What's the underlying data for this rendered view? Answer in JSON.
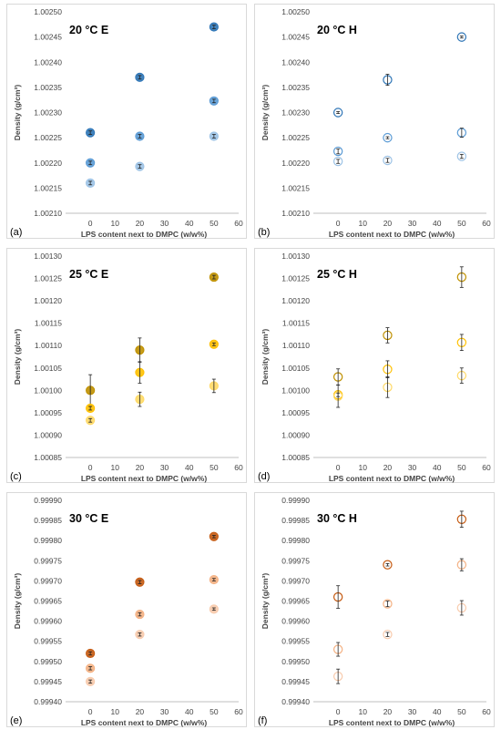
{
  "chart_data": [
    {
      "type": "scatter",
      "letter": "(a)",
      "title": "20 °C E",
      "xlabel": "LPS content next to DMPC (w/w%)",
      "ylabel": "Density (g/cm³)",
      "xlim": [
        -10,
        60
      ],
      "xticks": [
        "0",
        "10",
        "20",
        "30",
        "40",
        "50",
        "60"
      ],
      "ylim": [
        1.0021,
        1.0025
      ],
      "yticks": [
        "1.00210",
        "1.00215",
        "1.00220",
        "1.00225",
        "1.00230",
        "1.00235",
        "1.00240",
        "1.00245",
        "1.00250"
      ],
      "filled": true,
      "series": [
        {
          "color": "#2e75b6",
          "x": [
            0,
            20,
            50
          ],
          "y": [
            1.00226,
            1.00237,
            1.00247
          ],
          "err": [
            3.5e-06,
            3.5e-06,
            3.5e-06
          ]
        },
        {
          "color": "#5b9bd5",
          "x": [
            0,
            20,
            50
          ],
          "y": [
            1.0022,
            1.002253,
            1.002323
          ],
          "err": [
            3.5e-06,
            3.5e-06,
            3.5e-06
          ]
        },
        {
          "color": "#9dc3e6",
          "x": [
            0,
            20,
            50
          ],
          "y": [
            1.00216,
            1.002193,
            1.002253
          ],
          "err": [
            3.5e-06,
            3.5e-06,
            3.5e-06
          ]
        }
      ]
    },
    {
      "type": "scatter",
      "letter": "(b)",
      "title": "20 °C H",
      "xlabel": "LPS content next to DMPC (w/w%)",
      "ylabel": "Density (g/cm³)",
      "xlim": [
        -10,
        60
      ],
      "xticks": [
        "0",
        "10",
        "20",
        "30",
        "40",
        "50",
        "60"
      ],
      "ylim": [
        1.0021,
        1.0025
      ],
      "yticks": [
        "1.00210",
        "1.00215",
        "1.00220",
        "1.00225",
        "1.00230",
        "1.00235",
        "1.00240",
        "1.00245",
        "1.00250"
      ],
      "filled": false,
      "series": [
        {
          "color": "#2e75b6",
          "x": [
            0,
            20,
            50
          ],
          "y": [
            1.0023,
            1.002365,
            1.00245
          ],
          "err": [
            2e-06,
            1.1e-05,
            2e-06
          ]
        },
        {
          "color": "#5b9bd5",
          "x": [
            0,
            20,
            50
          ],
          "y": [
            1.002223,
            1.00225,
            1.00226
          ],
          "err": [
            5e-06,
            2e-06,
            9e-06
          ]
        },
        {
          "color": "#9dc3e6",
          "x": [
            0,
            20,
            50
          ],
          "y": [
            1.002203,
            1.002205,
            1.002213
          ],
          "err": [
            4e-06,
            4e-06,
            4e-06
          ]
        }
      ]
    },
    {
      "type": "scatter",
      "letter": "(c)",
      "title": "25 °C E",
      "xlabel": "LPS content next to DMPC (w/w%)",
      "ylabel": "Density (g/cm³)",
      "xlim": [
        -10,
        60
      ],
      "xticks": [
        "0",
        "10",
        "20",
        "30",
        "40",
        "50",
        "60"
      ],
      "ylim": [
        1.00085,
        1.0013
      ],
      "yticks": [
        "1.00085",
        "1.00090",
        "1.00095",
        "1.00100",
        "1.00105",
        "1.00110",
        "1.00115",
        "1.00120",
        "1.00125",
        "1.00130"
      ],
      "filled": true,
      "series": [
        {
          "color": "#bf9000",
          "x": [
            0,
            20,
            50
          ],
          "y": [
            1.001,
            1.00109,
            1.001253
          ],
          "err": [
            3.5e-05,
            2.7e-05,
            4e-06
          ]
        },
        {
          "color": "#ffc000",
          "x": [
            0,
            20,
            50
          ],
          "y": [
            1.00096,
            1.00104,
            1.001103
          ],
          "err": [
            4e-06,
            2.4e-05,
            3e-06
          ]
        },
        {
          "color": "#ffd966",
          "x": [
            0,
            20,
            50
          ],
          "y": [
            1.000933,
            1.00098,
            1.00101
          ],
          "err": [
            4e-06,
            1.6e-05,
            1.5e-05
          ]
        }
      ]
    },
    {
      "type": "scatter",
      "letter": "(d)",
      "title": "25 °C H",
      "xlabel": "LPS content next to DMPC (w/w%)",
      "ylabel": "Density (g/cm³)",
      "xlim": [
        -10,
        60
      ],
      "xticks": [
        "0",
        "10",
        "20",
        "30",
        "40",
        "50",
        "60"
      ],
      "ylim": [
        1.00085,
        1.0013
      ],
      "yticks": [
        "1.00085",
        "1.00090",
        "1.00095",
        "1.00100",
        "1.00105",
        "1.00110",
        "1.00115",
        "1.00120",
        "1.00125",
        "1.00130"
      ],
      "filled": false,
      "series": [
        {
          "color": "#bf9000",
          "x": [
            0,
            20,
            50
          ],
          "y": [
            1.00103,
            1.001123,
            1.001253
          ],
          "err": [
            1.8e-05,
            1.7e-05,
            2.3e-05
          ]
        },
        {
          "color": "#ffc000",
          "x": [
            0,
            20,
            50
          ],
          "y": [
            1.00099,
            1.001047,
            1.001107
          ],
          "err": [
            4e-06,
            1.9e-05,
            1.8e-05
          ]
        },
        {
          "color": "#ffd966",
          "x": [
            0,
            20,
            50
          ],
          "y": [
            1.000987,
            1.001007,
            1.001033
          ],
          "err": [
            2.5e-05,
            2.3e-05,
            1.7e-05
          ]
        }
      ]
    },
    {
      "type": "scatter",
      "letter": "(e)",
      "title": "30 °C E",
      "xlabel": "LPS content next to DMPC (w/w%)",
      "ylabel": "Density (g/cm³)",
      "xlim": [
        -10,
        60
      ],
      "xticks": [
        "0",
        "10",
        "20",
        "30",
        "40",
        "50",
        "60"
      ],
      "ylim": [
        0.9994,
        0.9999
      ],
      "yticks": [
        "0.99940",
        "0.99945",
        "0.99950",
        "0.99955",
        "0.99960",
        "0.99965",
        "0.99970",
        "0.99975",
        "0.99980",
        "0.99985",
        "0.99990"
      ],
      "filled": true,
      "series": [
        {
          "color": "#c55a11",
          "x": [
            0,
            20,
            50
          ],
          "y": [
            0.99952,
            0.999697,
            0.99981
          ],
          "err": [
            4e-06,
            4e-06,
            3e-06
          ]
        },
        {
          "color": "#f4b183",
          "x": [
            0,
            20,
            50
          ],
          "y": [
            0.999483,
            0.999617,
            0.999703
          ],
          "err": [
            4e-06,
            4e-06,
            3e-06
          ]
        },
        {
          "color": "#f8cbad",
          "x": [
            0,
            20,
            50
          ],
          "y": [
            0.99945,
            0.999567,
            0.99963
          ],
          "err": [
            4e-06,
            4e-06,
            3e-06
          ]
        }
      ]
    },
    {
      "type": "scatter",
      "letter": "(f)",
      "title": "30 °C H",
      "xlabel": "LPS content next to DMPC (w/w%)",
      "ylabel": "Density (g/cm³)",
      "xlim": [
        -10,
        60
      ],
      "xticks": [
        "0",
        "10",
        "20",
        "30",
        "40",
        "50",
        "60"
      ],
      "ylim": [
        0.9994,
        0.9999
      ],
      "yticks": [
        "0.99940",
        "0.99945",
        "0.99950",
        "0.99955",
        "0.99960",
        "0.99965",
        "0.99970",
        "0.99975",
        "0.99980",
        "0.99985",
        "0.99990"
      ],
      "filled": false,
      "series": [
        {
          "color": "#c55a11",
          "x": [
            0,
            20,
            50
          ],
          "y": [
            0.99966,
            0.99974,
            0.999853
          ],
          "err": [
            2.8e-05,
            3e-06,
            2e-05
          ]
        },
        {
          "color": "#f4b183",
          "x": [
            0,
            20,
            50
          ],
          "y": [
            0.99953,
            0.999643,
            0.99974
          ],
          "err": [
            1.7e-05,
            7e-06,
            1.5e-05
          ]
        },
        {
          "color": "#f8cbad",
          "x": [
            0,
            20,
            50
          ],
          "y": [
            0.999463,
            0.999567,
            0.999633
          ],
          "err": [
            1.8e-05,
            5e-06,
            1.8e-05
          ]
        }
      ]
    }
  ]
}
